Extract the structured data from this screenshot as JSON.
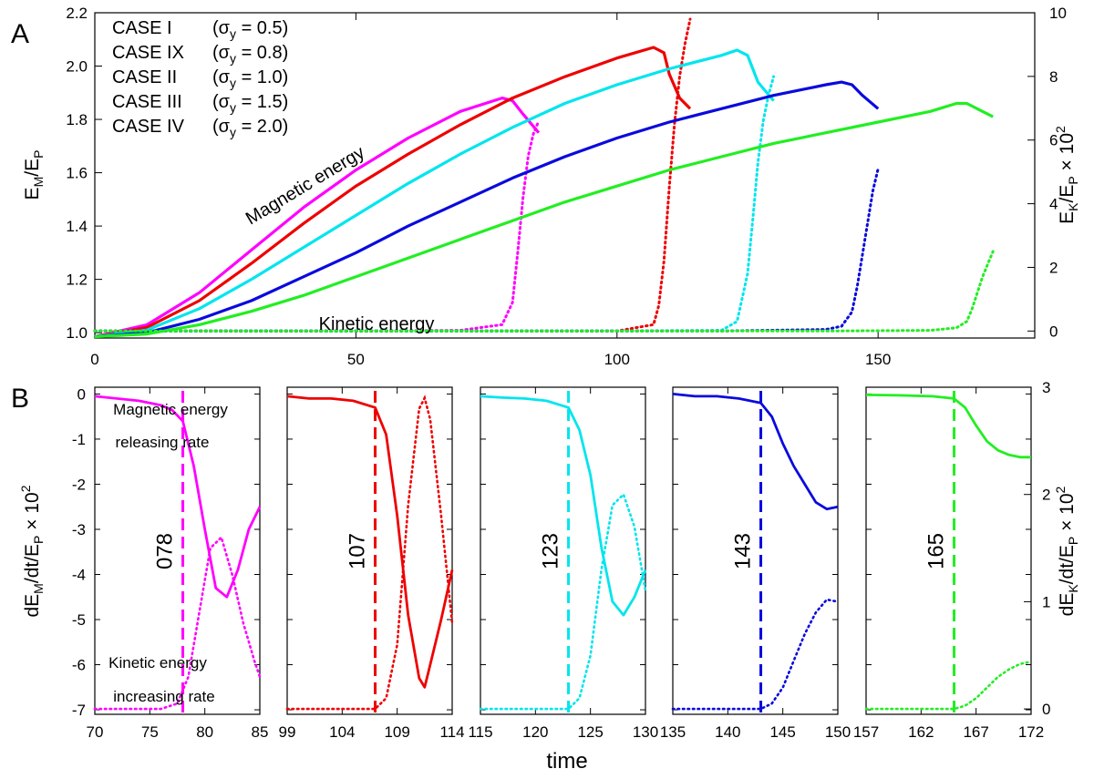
{
  "chart_data": [
    {
      "type": "line",
      "panel_label": "A",
      "xlabel": "",
      "ylabel": {
        "main": "E",
        "sub": "M",
        "rest": "/E",
        "sub2": "P"
      },
      "y2label": {
        "main": "E",
        "sub": "K",
        "rest": "/E",
        "sub2": "P",
        "tail": " × 10",
        "sup": "2"
      },
      "xlim": [
        0,
        180
      ],
      "ylim": [
        0.98,
        2.2
      ],
      "y2lim": [
        -0.22,
        10
      ],
      "xticks": [
        "0",
        "50",
        "100",
        "150"
      ],
      "xtick_values": [
        0,
        50,
        100,
        150
      ],
      "yticks": [
        "1.0",
        "1.2",
        "1.4",
        "1.6",
        "1.8",
        "2.0",
        "2.2"
      ],
      "ytick_values": [
        1.0,
        1.2,
        1.4,
        1.6,
        1.8,
        2.0,
        2.2
      ],
      "y2ticks": [
        "0",
        "2",
        "4",
        "6",
        "8",
        "10"
      ],
      "y2tick_values": [
        0,
        2,
        4,
        6,
        8,
        10
      ],
      "annotations": {
        "magnetic": "Magnetic energy",
        "kinetic": "Kinetic energy"
      },
      "series": [
        {
          "name": "CASE I",
          "legend_sigma": "(σ",
          "legend_sub": "y",
          "legend_val": " = 0.5)",
          "color": "#ff00ff",
          "magnetic": {
            "t": [
              0,
              10,
              20,
              30,
              40,
              50,
              60,
              70,
              78,
              80,
              82,
              85
            ],
            "em": [
              0.985,
              1.03,
              1.15,
              1.31,
              1.47,
              1.61,
              1.73,
              1.83,
              1.88,
              1.87,
              1.82,
              1.75
            ]
          },
          "kinetic": {
            "t": [
              0,
              50,
              70,
              78,
              80,
              81,
              82,
              83,
              84,
              85
            ],
            "ek": [
              0,
              0,
              0.02,
              0.2,
              0.9,
              2.5,
              4.2,
              5.5,
              6.2,
              6.6
            ]
          }
        },
        {
          "name": "CASE IX",
          "legend_sigma": "(σ",
          "legend_sub": "y",
          "legend_val": " = 0.8)",
          "color": "#ee0000",
          "magnetic": {
            "t": [
              0,
              10,
              20,
              30,
              40,
              50,
              60,
              70,
              80,
              90,
              100,
              107,
              109,
              110,
              112,
              114
            ],
            "em": [
              0.985,
              1.02,
              1.12,
              1.26,
              1.41,
              1.55,
              1.67,
              1.78,
              1.88,
              1.96,
              2.03,
              2.07,
              2.05,
              1.97,
              1.88,
              1.84
            ]
          },
          "kinetic": {
            "t": [
              0,
              80,
              100,
              107,
              108,
              109,
              110,
              111,
              112,
              113,
              114
            ],
            "ek": [
              0,
              0,
              0,
              0.2,
              0.8,
              2.2,
              4.5,
              6.5,
              8.0,
              9.0,
              9.8
            ]
          }
        },
        {
          "name": "CASE II",
          "legend_sigma": "(σ",
          "legend_sub": "y",
          "legend_val": " = 1.0)",
          "color": "#00e5ee",
          "magnetic": {
            "t": [
              0,
              10,
              20,
              30,
              40,
              50,
              60,
              70,
              80,
              90,
              100,
              110,
              120,
              123,
              125,
              127,
              130
            ],
            "em": [
              0.985,
              1.01,
              1.09,
              1.2,
              1.32,
              1.44,
              1.56,
              1.67,
              1.77,
              1.86,
              1.93,
              1.99,
              2.04,
              2.06,
              2.04,
              1.94,
              1.87
            ]
          },
          "kinetic": {
            "t": [
              0,
              100,
              120,
              123,
              125,
              126,
              127,
              128,
              129,
              130
            ],
            "ek": [
              0,
              0,
              0.02,
              0.3,
              1.8,
              3.5,
              5.3,
              6.6,
              7.4,
              8.0
            ]
          }
        },
        {
          "name": "CASE III",
          "legend_sigma": "(σ",
          "legend_sub": "y",
          "legend_val": " = 1.5)",
          "color": "#0a0add",
          "magnetic": {
            "t": [
              0,
              10,
              20,
              30,
              40,
              50,
              60,
              70,
              80,
              90,
              100,
              110,
              120,
              130,
              140,
              143,
              145,
              147,
              150
            ],
            "em": [
              0.985,
              1.0,
              1.05,
              1.12,
              1.21,
              1.3,
              1.4,
              1.49,
              1.58,
              1.66,
              1.73,
              1.79,
              1.84,
              1.89,
              1.93,
              1.94,
              1.93,
              1.89,
              1.84
            ]
          },
          "kinetic": {
            "t": [
              0,
              120,
              140,
              143,
              145,
              146,
              147,
              148,
              149,
              150
            ],
            "ek": [
              0,
              0,
              0.05,
              0.15,
              0.6,
              1.4,
              2.4,
              3.4,
              4.4,
              5.1
            ]
          }
        },
        {
          "name": "CASE IV",
          "legend_sigma": "(σ",
          "legend_sub": "y",
          "legend_val": " = 2.0)",
          "color": "#22ee22",
          "magnetic": {
            "t": [
              0,
              10,
              20,
              30,
              40,
              50,
              60,
              70,
              80,
              90,
              100,
              110,
              120,
              130,
              140,
              150,
              160,
              165,
              167,
              170,
              172
            ],
            "em": [
              0.985,
              0.995,
              1.03,
              1.08,
              1.14,
              1.21,
              1.28,
              1.35,
              1.42,
              1.49,
              1.55,
              1.61,
              1.66,
              1.71,
              1.75,
              1.79,
              1.83,
              1.86,
              1.86,
              1.83,
              1.81
            ]
          },
          "kinetic": {
            "t": [
              0,
              140,
              160,
              165,
              167,
              168,
              169,
              170,
              171,
              172
            ],
            "ek": [
              0,
              0,
              0.02,
              0.1,
              0.3,
              0.7,
              1.2,
              1.7,
              2.1,
              2.5
            ]
          }
        }
      ]
    },
    {
      "type": "line",
      "panel_label": "B",
      "xlabel": "time",
      "ylabel": {
        "main": "dE",
        "sub": "M",
        "rest": "/dt/E",
        "sub2": "P",
        "tail": " × 10",
        "sup": "2"
      },
      "y2label": {
        "main": "dE",
        "sub": "K",
        "rest": "/dt/E",
        "sub2": "P",
        "tail": " × 10",
        "sup": "2"
      },
      "ylim": [
        -7.1,
        0.15
      ],
      "y2lim": [
        -0.05,
        3.0
      ],
      "yticks": [
        "-7",
        "-6",
        "-5",
        "-4",
        "-3",
        "-2",
        "-1",
        "0"
      ],
      "ytick_values": [
        -7,
        -6,
        -5,
        -4,
        -3,
        -2,
        -1,
        0
      ],
      "y2ticks": [
        "0",
        "1",
        "2",
        "3"
      ],
      "y2tick_values": [
        0,
        1,
        2,
        3
      ],
      "annotations": {
        "mag_rate_1": "Magnetic energy",
        "mag_rate_2": "releasing rate",
        "kin_rate_1": "Kinetic energy",
        "kin_rate_2": "increasing rate"
      },
      "subpanels": [
        {
          "case": "CASE I",
          "color": "#ff00ff",
          "xlim": [
            70,
            85
          ],
          "xticks": [
            "70",
            "75",
            "80",
            "85"
          ],
          "xtick_values": [
            70,
            75,
            80,
            85
          ],
          "vline": 78,
          "vline_label": "078",
          "dem": {
            "t": [
              70,
              72,
              74,
              76,
              77,
              78,
              79,
              80,
              81,
              82,
              83,
              84,
              85
            ],
            "v": [
              -0.05,
              -0.1,
              -0.15,
              -0.25,
              -0.35,
              -0.6,
              -1.6,
              -3.0,
              -4.3,
              -4.5,
              -3.9,
              -3.0,
              -2.5
            ]
          },
          "dek": {
            "t": [
              70,
              76,
              77.5,
              78.5,
              79.5,
              80.5,
              81.5,
              82.5,
              83.5,
              84.5,
              85
            ],
            "v": [
              0.0,
              0.0,
              0.05,
              0.3,
              0.9,
              1.5,
              1.6,
              1.25,
              0.8,
              0.45,
              0.3
            ]
          }
        },
        {
          "case": "CASE IX",
          "color": "#ee0000",
          "xlim": [
            99,
            114
          ],
          "xticks": [
            "99",
            "104",
            "109",
            "114"
          ],
          "xtick_values": [
            99,
            104,
            109,
            114
          ],
          "vline": 107,
          "vline_label": "107",
          "dem": {
            "t": [
              99,
              101,
              103,
              105,
              107,
              108,
              109,
              110,
              111,
              111.5,
              112,
              113,
              114
            ],
            "v": [
              -0.05,
              -0.1,
              -0.1,
              -0.15,
              -0.3,
              -0.9,
              -2.7,
              -4.9,
              -6.3,
              -6.5,
              -6.0,
              -5.0,
              -3.9
            ]
          },
          "dek": {
            "t": [
              99,
              107,
              108,
              109,
              110,
              111,
              111.5,
              112,
              113,
              114
            ],
            "v": [
              0.0,
              0.0,
              0.1,
              0.6,
              1.9,
              2.8,
              2.9,
              2.7,
              1.8,
              0.8
            ]
          }
        },
        {
          "case": "CASE II",
          "color": "#00e5ee",
          "xlim": [
            115,
            130
          ],
          "xticks": [
            "115",
            "120",
            "125",
            "130"
          ],
          "xtick_values": [
            115,
            120,
            125,
            130
          ],
          "vline": 123,
          "vline_label": "123",
          "dem": {
            "t": [
              115,
              117,
              119,
              121,
              123,
              124,
              125,
              126,
              127,
              128,
              129,
              130
            ],
            "v": [
              -0.05,
              -0.08,
              -0.1,
              -0.15,
              -0.3,
              -0.8,
              -1.8,
              -3.4,
              -4.6,
              -4.9,
              -4.5,
              -3.9
            ]
          },
          "dek": {
            "t": [
              115,
              123,
              124,
              125,
              126,
              127,
              128,
              129,
              130
            ],
            "v": [
              0.0,
              0.0,
              0.1,
              0.5,
              1.3,
              1.9,
              2.0,
              1.7,
              1.1
            ]
          }
        },
        {
          "case": "CASE III",
          "color": "#0a0add",
          "xlim": [
            135,
            150
          ],
          "xticks": [
            "135",
            "140",
            "145",
            "150"
          ],
          "xtick_values": [
            135,
            140,
            145,
            150
          ],
          "vline": 143,
          "vline_label": "143",
          "dem": {
            "t": [
              135,
              137,
              139,
              141,
              143,
              144,
              145,
              146,
              147,
              148,
              149,
              150
            ],
            "v": [
              0.0,
              -0.05,
              -0.05,
              -0.1,
              -0.2,
              -0.5,
              -1.1,
              -1.6,
              -2.0,
              -2.4,
              -2.55,
              -2.5
            ]
          },
          "dek": {
            "t": [
              135,
              143,
              144,
              145,
              146,
              147,
              148,
              149,
              150
            ],
            "v": [
              0.0,
              0.0,
              0.05,
              0.2,
              0.45,
              0.7,
              0.9,
              1.02,
              1.0
            ]
          }
        },
        {
          "case": "CASE IV",
          "color": "#22ee22",
          "xlim": [
            157,
            172
          ],
          "xticks": [
            "157",
            "162",
            "167",
            "172"
          ],
          "xtick_values": [
            157,
            162,
            167,
            172
          ],
          "vline": 165,
          "vline_label": "165",
          "dem": {
            "t": [
              157,
              160,
              163,
              165,
              166,
              167,
              168,
              169,
              170,
              171,
              172
            ],
            "v": [
              -0.02,
              -0.03,
              -0.05,
              -0.1,
              -0.3,
              -0.7,
              -1.05,
              -1.25,
              -1.35,
              -1.4,
              -1.4
            ]
          },
          "dek": {
            "t": [
              157,
              165,
              166,
              167,
              168,
              169,
              170,
              171,
              172
            ],
            "v": [
              0.0,
              0.0,
              0.03,
              0.1,
              0.2,
              0.3,
              0.37,
              0.42,
              0.44
            ]
          }
        }
      ]
    }
  ]
}
